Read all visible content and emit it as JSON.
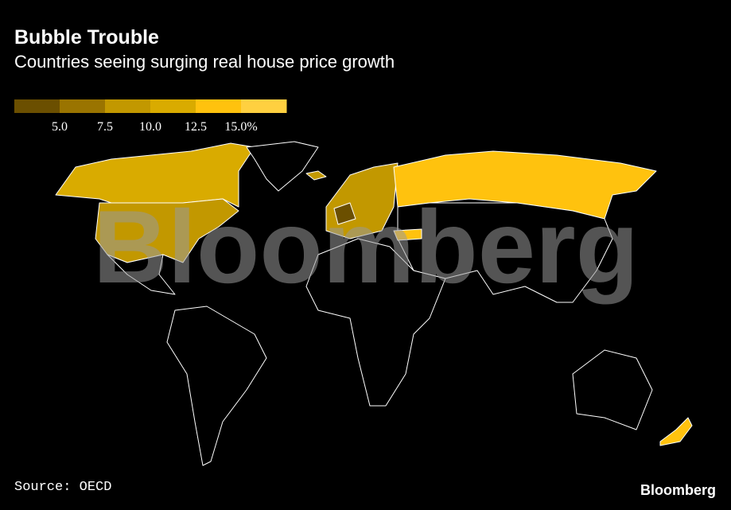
{
  "header": {
    "title": "Bubble Trouble",
    "subtitle": "Countries seeing surging real house price growth"
  },
  "legend": {
    "colors": [
      "#6b4f00",
      "#9a7400",
      "#c29800",
      "#d9ab00",
      "#ffc20e",
      "#ffd040"
    ],
    "ticks": [
      {
        "value": 5,
        "label": "5.0"
      },
      {
        "value": 7.5,
        "label": "7.5"
      },
      {
        "value": 10,
        "label": "10.0"
      },
      {
        "value": 12.5,
        "label": "12.5"
      },
      {
        "value": 15,
        "label": "15.0%"
      }
    ]
  },
  "watermark": "Bloomberg",
  "footer": {
    "source": "Source: OECD",
    "logo": "Bloomberg"
  }
}
